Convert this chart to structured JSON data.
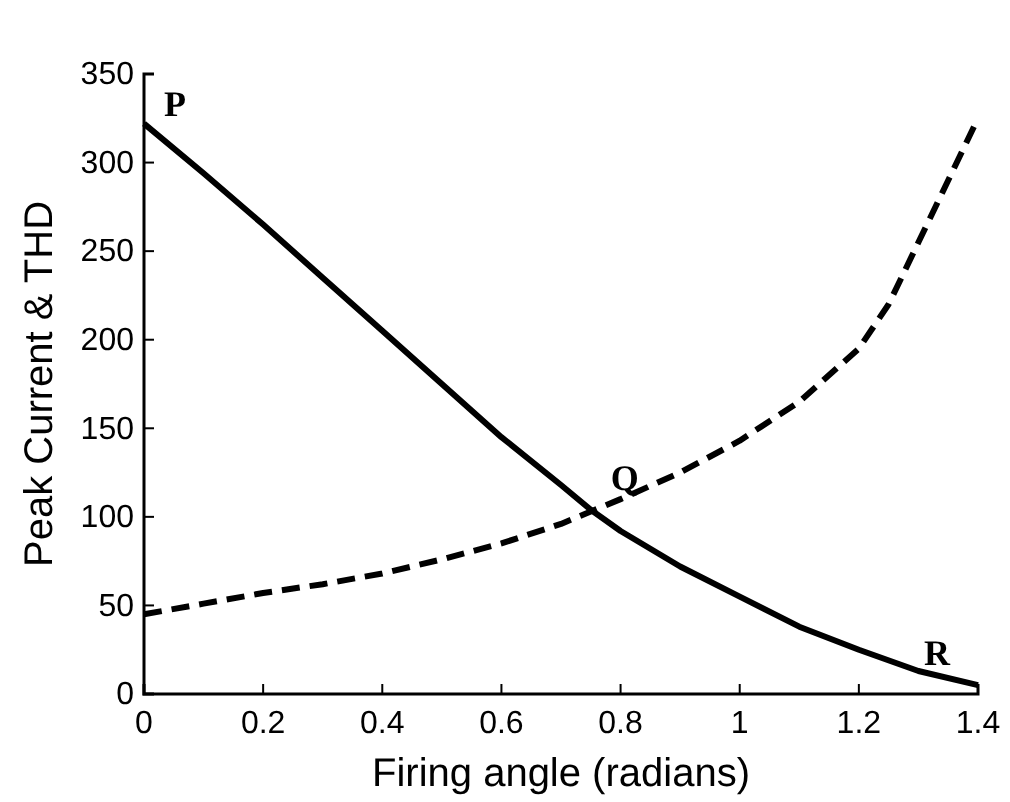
{
  "chart_data": {
    "type": "line",
    "xlabel": "Firing angle (radians)",
    "ylabel": "Peak Current & THD",
    "xlim": [
      0,
      1.4
    ],
    "ylim": [
      0,
      350
    ],
    "xticks": [
      0,
      0.2,
      0.4,
      0.6,
      0.8,
      1,
      1.2,
      1.4
    ],
    "yticks": [
      0,
      50,
      100,
      150,
      200,
      250,
      300,
      350
    ],
    "grid": false,
    "marker": "none",
    "series": [
      {
        "color": "#000000",
        "line_style": "solid",
        "x": [
          0,
          0.1,
          0.2,
          0.3,
          0.4,
          0.5,
          0.6,
          0.7,
          0.75,
          0.8,
          0.9,
          1.0,
          1.1,
          1.2,
          1.3,
          1.4
        ],
        "values": [
          322,
          294,
          265,
          235,
          205,
          175,
          145,
          118,
          104,
          92,
          72,
          55,
          38,
          25,
          13,
          5
        ]
      },
      {
        "color": "#000000",
        "line_style": "dashed",
        "x": [
          0,
          0.1,
          0.2,
          0.3,
          0.4,
          0.5,
          0.6,
          0.7,
          0.75,
          0.8,
          0.9,
          1.0,
          1.1,
          1.2,
          1.25,
          1.3,
          1.4
        ],
        "values": [
          45,
          51,
          57,
          62,
          68,
          76,
          85,
          96,
          103,
          110,
          125,
          143,
          165,
          195,
          220,
          255,
          325
        ]
      }
    ],
    "annotations": [
      {
        "text": "P",
        "x": 0,
        "y": 322
      },
      {
        "text": "Q",
        "x": 0.75,
        "y": 104
      },
      {
        "text": "R",
        "x": 1.4,
        "y": 5
      }
    ]
  }
}
